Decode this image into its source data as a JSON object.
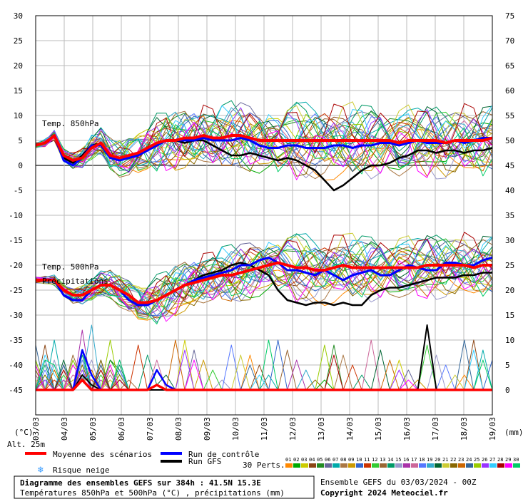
{
  "chart_data": {
    "type": "line",
    "title": "Diagramme des ensembles GEFS sur 384h : 41.5N 15.3E",
    "subtitle": "Températures 850hPa et 500hPa (°C) , précipitations (mm)",
    "run_info": "Ensemble GEFS du 03/03/2024 - 00Z",
    "copyright": "Copyright 2024 Meteociel.fr",
    "left_axis": {
      "unit": "(°C)",
      "ticks": [
        30,
        25,
        20,
        15,
        10,
        5,
        0,
        -5,
        -10,
        -15,
        -20,
        -25,
        -30,
        -35,
        -40,
        -45
      ],
      "ylim": [
        -45,
        30
      ]
    },
    "right_axis": {
      "unit": "(mm)",
      "ticks": [
        75,
        70,
        65,
        60,
        55,
        50,
        45,
        40,
        35,
        30,
        25,
        20,
        15,
        10,
        5,
        0
      ],
      "ylim": [
        0,
        75
      ]
    },
    "x_dates": [
      "03/03",
      "04/03",
      "05/03",
      "06/03",
      "07/03",
      "08/03",
      "09/03",
      "10/03",
      "11/03",
      "12/03",
      "13/03",
      "14/03",
      "15/03",
      "16/03",
      "17/03",
      "18/03",
      "19/03"
    ],
    "panel_labels": {
      "t850": "Temp. 850hPa",
      "t500": "Temp. 500hPa",
      "precip": "Précipitations"
    },
    "altitude": "Alt. 25m",
    "legend": {
      "mean": "Moyenne des scénarios",
      "control": "Run de contrôle",
      "gfs": "Run GFS",
      "snow": "Risque neige",
      "perts": "30 Perts.",
      "member_ids": [
        "01",
        "02",
        "03",
        "04",
        "05",
        "06",
        "07",
        "08",
        "09",
        "10",
        "11",
        "12",
        "13",
        "14",
        "15",
        "16",
        "17",
        "18",
        "19",
        "20",
        "21",
        "22",
        "23",
        "24",
        "25",
        "26",
        "27",
        "28",
        "29",
        "30"
      ]
    },
    "colors": {
      "mean": "#ff0000",
      "control": "#0000ff",
      "gfs": "#000000",
      "snow": "#3399ff",
      "grid": "#bbbbbb",
      "zero": "#707070",
      "members": [
        "#ff8800",
        "#00aa00",
        "#cccc00",
        "#8b4513",
        "#228b22",
        "#666699",
        "#00aaaa",
        "#aa7744",
        "#cc9900",
        "#3366cc",
        "#cc3300",
        "#33cc33",
        "#996633",
        "#009966",
        "#9999cc",
        "#aa33aa",
        "#cc6699",
        "#5577ff",
        "#33aacc",
        "#006633",
        "#cccc33",
        "#886600",
        "#cc6600",
        "#336699",
        "#99cc00",
        "#9933ff",
        "#33ccff",
        "#aa0000",
        "#ff00ff",
        "#00cc66"
      ]
    },
    "mean_series": {
      "name": "Moyenne des scénarios",
      "t850": [
        4,
        4.5,
        6,
        2,
        1,
        1.5,
        3.5,
        4.5,
        2,
        1.5,
        2,
        2.5,
        3.5,
        4.5,
        5,
        5,
        5.5,
        5.5,
        6,
        5.5,
        5.5,
        6,
        6,
        5.5,
        5,
        5,
        5,
        5,
        5,
        5,
        5,
        5,
        5,
        5,
        5,
        5,
        5,
        5,
        5,
        4.5,
        5,
        5,
        5,
        5,
        4.5,
        5,
        5,
        5,
        5,
        5.5
      ],
      "t500": [
        -23,
        -23,
        -23,
        -25,
        -26,
        -26,
        -25,
        -24,
        -24,
        -25,
        -26,
        -27.5,
        -27.5,
        -27,
        -26,
        -25,
        -24,
        -23.5,
        -23,
        -22.5,
        -22,
        -22,
        -21.5,
        -21,
        -20.5,
        -20,
        -19.5,
        -20,
        -20.5,
        -20.5,
        -21,
        -21,
        -20.5,
        -20,
        -20.5,
        -20.5,
        -20.5,
        -20.5,
        -20.5,
        -20.5,
        -20.5,
        -20.5,
        -20,
        -20,
        -20,
        -20,
        -20,
        -20.5,
        -20,
        -20
      ]
    },
    "control_series": {
      "name": "Run de contrôle",
      "t850": [
        4,
        4.5,
        6,
        1,
        0,
        1.5,
        4,
        4,
        1.5,
        1,
        1.5,
        2,
        3,
        4,
        5,
        5,
        5,
        5,
        5.5,
        5,
        5,
        5,
        5.5,
        5,
        4,
        3.5,
        3.5,
        4,
        4,
        3.5,
        3.5,
        3.5,
        4,
        4,
        3.5,
        4,
        4,
        4.5,
        4.5,
        4,
        4.5,
        5,
        4.5,
        4.5,
        4.5,
        5,
        4.5,
        5,
        5.5,
        5.5
      ],
      "t500": [
        -23,
        -23,
        -23,
        -26,
        -27,
        -27,
        -25,
        -24,
        -24,
        -25,
        -27,
        -28,
        -28,
        -27,
        -26,
        -25,
        -24,
        -23,
        -22.5,
        -22,
        -21.5,
        -21,
        -20,
        -20,
        -19,
        -18.5,
        -19.5,
        -21,
        -21,
        -21.5,
        -22,
        -21,
        -22,
        -23,
        -22,
        -21.5,
        -21,
        -22,
        -22,
        -21,
        -20,
        -20.5,
        -21,
        -21,
        -19.5,
        -19.5,
        -20,
        -20,
        -19,
        -18.5
      ],
      "precip_mm": [
        0,
        0,
        0,
        0,
        0,
        8,
        3,
        0,
        0,
        0,
        0,
        0,
        0,
        4,
        1,
        0,
        0,
        0,
        0,
        0,
        0,
        0,
        0,
        0,
        0,
        0,
        0,
        0,
        0,
        0,
        0,
        0,
        0,
        0,
        0,
        0,
        0,
        0,
        0,
        0,
        0,
        0,
        0,
        0,
        0,
        0,
        0,
        0,
        0,
        0
      ]
    },
    "gfs_series": {
      "name": "Run GFS",
      "t850": [
        4,
        4.5,
        6,
        1.5,
        0.5,
        2,
        4,
        4.5,
        1.5,
        1,
        1.5,
        2,
        3,
        4,
        5,
        5,
        4.5,
        5,
        5,
        4,
        3,
        2,
        2,
        2.5,
        2,
        1.5,
        1,
        1.5,
        1,
        0,
        -1,
        -3,
        -5,
        -4,
        -2.5,
        -1,
        0,
        0,
        0.5,
        1.5,
        2,
        3,
        3,
        2.5,
        3,
        3,
        2.5,
        3,
        3,
        3.5
      ],
      "t500": [
        -23,
        -23,
        -23,
        -26,
        -27,
        -27,
        -25,
        -24,
        -24,
        -25,
        -27,
        -28,
        -28,
        -27,
        -26,
        -25,
        -24,
        -23,
        -22,
        -21.5,
        -21,
        -20,
        -19.5,
        -20,
        -21,
        -22,
        -25,
        -27,
        -27.5,
        -28,
        -27.5,
        -27.5,
        -28,
        -27.5,
        -28,
        -28,
        -26,
        -25,
        -24.5,
        -24.5,
        -24,
        -23.5,
        -23,
        -22.5,
        -22.5,
        -22.5,
        -22,
        -22,
        -21.5,
        -21.5
      ],
      "precip_mm": [
        0,
        0,
        0,
        0,
        0,
        3,
        1,
        0,
        0,
        0,
        0,
        0,
        0,
        0,
        0,
        0,
        0,
        0,
        0,
        0,
        0,
        0,
        0,
        0,
        0,
        0,
        0,
        0,
        0,
        0,
        0,
        0,
        0,
        0,
        0,
        0,
        0,
        0,
        0,
        0,
        0,
        0,
        13,
        0,
        0,
        0,
        0,
        0,
        0,
        0
      ]
    },
    "precip_mean_mm": [
      0,
      0,
      0,
      0,
      0,
      2,
      0,
      0,
      0,
      0,
      0,
      0,
      0,
      1,
      0,
      0,
      0,
      0,
      0,
      0,
      0,
      0,
      0,
      0,
      0,
      0,
      0,
      0,
      0,
      0,
      0,
      0,
      0,
      0,
      0,
      0,
      0,
      0,
      0,
      0,
      0,
      0,
      0,
      0,
      0,
      0,
      0,
      0,
      0,
      0
    ]
  }
}
